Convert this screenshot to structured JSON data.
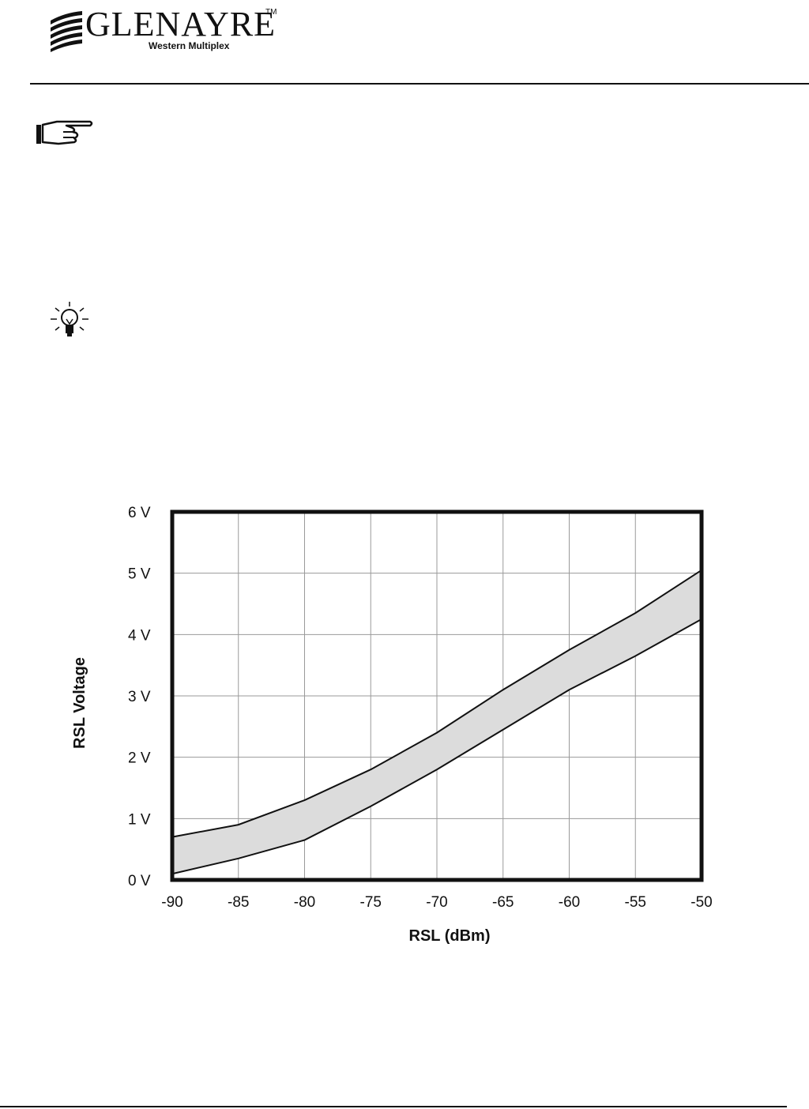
{
  "header": {
    "brand": "GLENAYRE",
    "trademark": "TM",
    "subbrand": "Western Multiplex"
  },
  "icons": {
    "note": "pointing-hand-icon",
    "tip": "lightbulb-icon"
  },
  "chart_data": {
    "type": "area",
    "xlabel": "RSL  (dBm)",
    "ylabel": "RSL Voltage",
    "x_ticks": [
      -90,
      -85,
      -80,
      -75,
      -70,
      -65,
      -60,
      -55,
      -50
    ],
    "x_tick_labels": [
      "-90",
      "-85",
      "-80",
      "-75",
      "-70",
      "-65",
      "-60",
      "-55",
      "-50"
    ],
    "y_ticks": [
      0,
      1,
      2,
      3,
      4,
      5,
      6
    ],
    "y_tick_labels": [
      "0 V",
      "1 V",
      "2 V",
      "3 V",
      "4 V",
      "5 V",
      "6 V"
    ],
    "xlim": [
      -90,
      -50
    ],
    "ylim": [
      0,
      6
    ],
    "grid": true,
    "x": [
      -90,
      -85,
      -80,
      -75,
      -70,
      -65,
      -60,
      -55,
      -50
    ],
    "series": [
      {
        "values": [
          0.7,
          0.9,
          1.3,
          1.8,
          2.4,
          3.1,
          3.75,
          4.35,
          5.05
        ]
      },
      {
        "values": [
          0.1,
          0.35,
          0.65,
          1.2,
          1.8,
          2.45,
          3.1,
          3.65,
          4.25
        ]
      }
    ],
    "band_color": "#dcdcdc",
    "line_color": "#111111"
  }
}
